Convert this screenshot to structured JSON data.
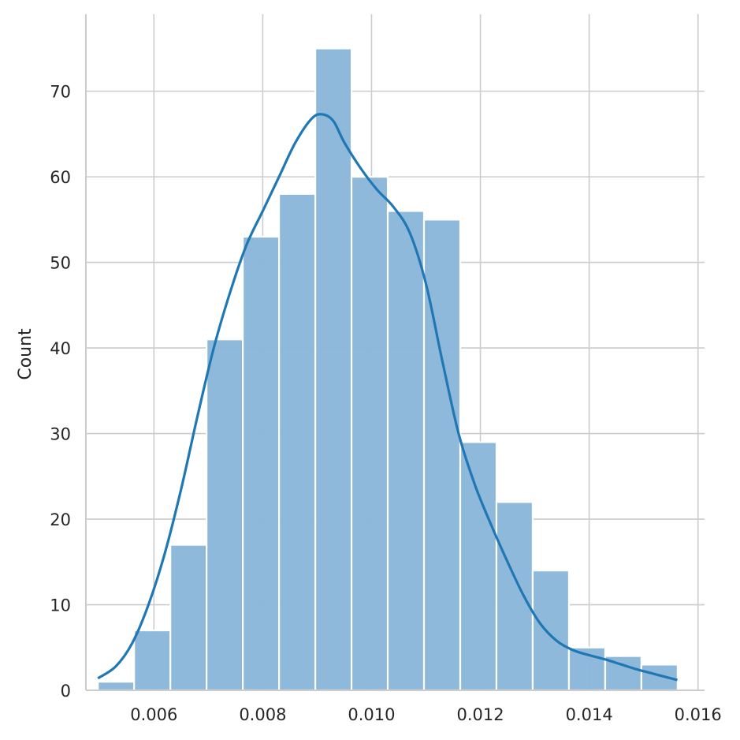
{
  "chart_data": {
    "type": "bar",
    "title": "",
    "xlabel": "",
    "ylabel": "Count",
    "xlim": [
      0.00475,
      0.01612
    ],
    "ylim": [
      0,
      79
    ],
    "grid": true,
    "bar_color": "#8db8da",
    "bar_edge_color": "#ffffff",
    "kde_color": "#1f77b4",
    "grid_color": "#cccccc",
    "x_ticks": [
      {
        "value": 0.006,
        "label": "0.006"
      },
      {
        "value": 0.008,
        "label": "0.008"
      },
      {
        "value": 0.01,
        "label": "0.010"
      },
      {
        "value": 0.012,
        "label": "0.012"
      },
      {
        "value": 0.014,
        "label": "0.014"
      },
      {
        "value": 0.016,
        "label": "0.016"
      }
    ],
    "y_ticks": [
      {
        "value": 0,
        "label": "0"
      },
      {
        "value": 10,
        "label": "10"
      },
      {
        "value": 20,
        "label": "20"
      },
      {
        "value": 30,
        "label": "30"
      },
      {
        "value": 40,
        "label": "40"
      },
      {
        "value": 50,
        "label": "50"
      },
      {
        "value": 60,
        "label": "60"
      },
      {
        "value": 70,
        "label": "70"
      }
    ],
    "bins": {
      "start": 0.00497,
      "width": 0.000666,
      "counts": [
        1,
        7,
        17,
        41,
        53,
        58,
        75,
        60,
        56,
        55,
        29,
        22,
        14,
        5,
        4,
        3
      ]
    },
    "kde": {
      "x": [
        0.00497,
        0.0053,
        0.0056,
        0.0059,
        0.0062,
        0.0065,
        0.0068,
        0.0071,
        0.0074,
        0.0077,
        0.008,
        0.0083,
        0.0086,
        0.0089,
        0.0091,
        0.0093,
        0.0095,
        0.0098,
        0.0101,
        0.0104,
        0.0107,
        0.011,
        0.0113,
        0.0116,
        0.0119,
        0.0122,
        0.0125,
        0.0128,
        0.0131,
        0.0134,
        0.0137,
        0.014,
        0.0143,
        0.0146,
        0.0149,
        0.0152,
        0.0155,
        0.01562
      ],
      "y": [
        1.4,
        2.8,
        5.5,
        10,
        16,
        23.5,
        32,
        40,
        46.5,
        52,
        56,
        60,
        64,
        66.8,
        67.3,
        66.5,
        64,
        61,
        58.5,
        56.5,
        53.5,
        47.5,
        38.5,
        30,
        24,
        19.3,
        15,
        11,
        7.8,
        5.8,
        4.7,
        4.1,
        3.6,
        3.0,
        2.4,
        1.9,
        1.4,
        1.2
      ]
    }
  }
}
